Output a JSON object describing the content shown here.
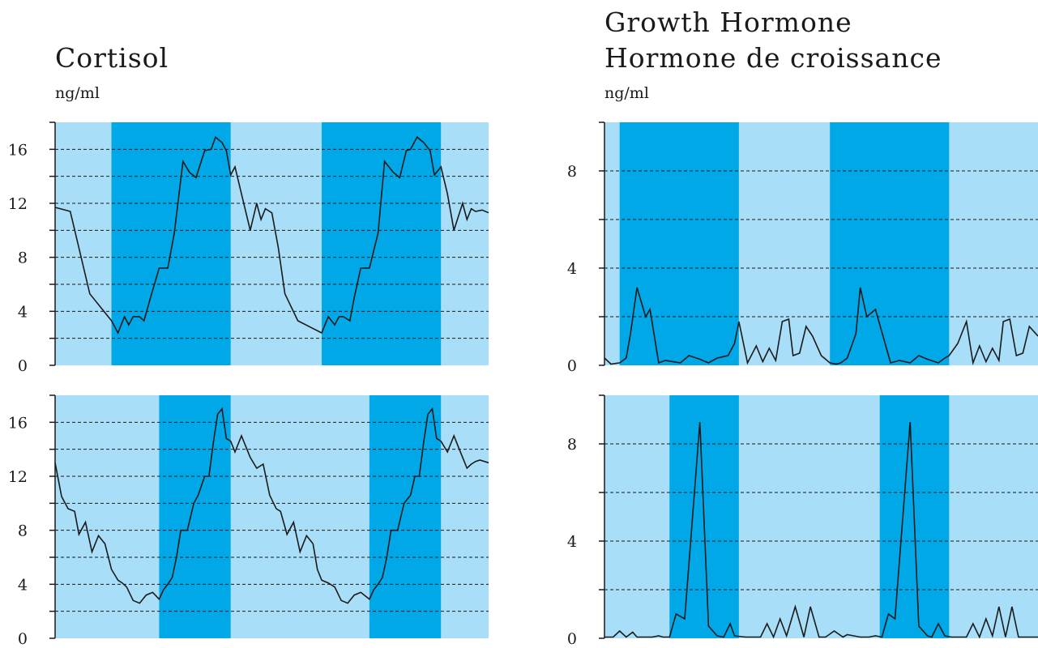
{
  "left_title": "Cortisol",
  "left_unit": "ng/ml",
  "right_title_line1": "Growth Hormone",
  "right_title_line2": "Hormone de croissance",
  "right_unit": "ng/ml",
  "colors": {
    "light_band": "#a8def8",
    "dark_band": "#00a8e8",
    "line": "#1a1a1a"
  },
  "chart_data": [
    {
      "type": "line",
      "name": "cortisol-top",
      "ylim": [
        0,
        18
      ],
      "yticks": [
        0,
        4,
        8,
        12,
        16
      ],
      "grid": "dashed every 2",
      "xlim": [
        0,
        100
      ],
      "dark_bands": [
        [
          13,
          40.5
        ],
        [
          61.5,
          89
        ]
      ],
      "x": [
        0,
        3.5,
        8,
        13,
        14.5,
        16,
        17,
        18,
        19.5,
        20.5,
        22,
        24,
        26,
        27.5,
        29.5,
        31,
        32.5,
        34.5,
        36,
        37,
        38.5,
        39.5,
        40.5,
        41.5,
        43,
        45,
        46.5,
        47.5,
        48.5,
        50,
        51.5,
        53,
        56,
        61.5,
        63,
        64.5,
        65.5,
        66.5,
        68,
        69,
        70.5,
        72.5,
        74.5,
        76,
        78,
        79.5,
        81,
        82,
        83.5,
        85,
        86.5,
        87.5,
        89,
        90.5,
        92,
        94,
        95,
        96,
        97,
        98.5,
        100
      ],
      "y": [
        11.7,
        11.4,
        5.3,
        3.3,
        2.4,
        3.6,
        3.0,
        3.6,
        3.6,
        3.3,
        5.0,
        7.2,
        7.2,
        9.8,
        15.1,
        14.3,
        13.9,
        15.9,
        16.0,
        16.9,
        16.5,
        15.9,
        14.1,
        14.7,
        12.7,
        10.0,
        12.0,
        10.8,
        11.6,
        11.3,
        8.7,
        5.3,
        3.3,
        2.4,
        3.6,
        3.0,
        3.6,
        3.6,
        3.3,
        5.0,
        7.2,
        7.2,
        9.8,
        15.1,
        14.3,
        13.9,
        15.9,
        16.0,
        16.9,
        16.5,
        15.9,
        14.1,
        14.7,
        12.7,
        10.0,
        12.0,
        10.8,
        11.6,
        11.4,
        11.5,
        11.3
      ]
    },
    {
      "type": "line",
      "name": "cortisol-bottom",
      "ylim": [
        0,
        18
      ],
      "yticks": [
        0,
        4,
        8,
        12,
        16
      ],
      "grid": "dashed every 2",
      "xlim": [
        0,
        100
      ],
      "dark_bands": [
        [
          24,
          40.5
        ],
        [
          72.5,
          89
        ]
      ],
      "x": [
        0,
        1.5,
        3,
        4.5,
        5.5,
        7,
        8.5,
        10,
        11.5,
        13,
        14.5,
        15.5,
        16.5,
        18,
        19.5,
        21,
        22.5,
        24,
        25,
        26,
        27,
        28,
        29,
        30.5,
        32,
        33,
        34.5,
        35.5,
        36.5,
        37.5,
        38.5,
        39.5,
        40.5,
        41.5,
        43,
        44,
        45,
        46.5,
        48,
        49.5,
        51,
        52,
        53.5,
        55,
        56.5,
        58,
        59.5,
        60.5,
        61.5,
        63,
        64.5,
        66,
        67.5,
        69,
        70.5,
        72.5,
        73.5,
        74.5,
        75.5,
        76.5,
        77.5,
        79,
        80.5,
        82,
        83,
        84,
        85,
        86,
        87,
        88,
        89,
        90.5,
        92,
        93,
        94,
        95,
        96,
        97,
        98,
        100
      ],
      "y": [
        13.0,
        10.5,
        9.6,
        9.4,
        7.7,
        8.6,
        6.4,
        7.6,
        7.0,
        5.1,
        4.3,
        4.1,
        3.8,
        2.8,
        2.6,
        3.2,
        3.4,
        2.9,
        3.6,
        4.0,
        4.5,
        6.0,
        8.0,
        8.0,
        10.0,
        10.6,
        12.0,
        12.0,
        14.5,
        16.6,
        17.0,
        14.8,
        14.6,
        13.8,
        15.0,
        14.2,
        13.4,
        12.6,
        12.9,
        10.6,
        9.6,
        9.4,
        7.7,
        8.6,
        6.4,
        7.6,
        7.0,
        5.1,
        4.3,
        4.1,
        3.8,
        2.8,
        2.6,
        3.2,
        3.4,
        2.9,
        3.6,
        4.0,
        4.5,
        6.0,
        8.0,
        8.0,
        10.0,
        10.6,
        12.0,
        12.0,
        14.5,
        16.6,
        17.0,
        14.8,
        14.6,
        13.8,
        15.0,
        14.2,
        13.4,
        12.6,
        12.9,
        13.1,
        13.2,
        13.0
      ]
    },
    {
      "type": "line",
      "name": "growth-hormone-top",
      "ylim": [
        0,
        10
      ],
      "yticks": [
        0,
        4,
        8
      ],
      "grid": "dashed every 2",
      "xlim": [
        0,
        100
      ],
      "dark_bands": [
        [
          3.5,
          31
        ],
        [
          52,
          79.5
        ]
      ],
      "x": [
        0,
        1.5,
        3.5,
        5,
        6,
        7.5,
        9.5,
        10.5,
        12.5,
        14,
        17.5,
        19.5,
        22,
        24,
        26,
        28.5,
        30,
        31,
        33,
        35,
        36.5,
        38,
        39.5,
        41,
        42.5,
        43.5,
        45,
        46.5,
        48,
        50,
        52,
        53.5,
        54.5,
        56,
        58,
        59,
        60.5,
        62.5,
        66,
        68,
        70.5,
        72.5,
        74.5,
        77,
        78.5,
        79.5,
        81.5,
        83.5,
        85,
        86.5,
        88,
        89.5,
        91,
        92,
        93.5,
        95,
        96.5,
        98,
        100
      ],
      "y": [
        0.3,
        0.05,
        0.1,
        0.3,
        1.3,
        3.2,
        2.0,
        2.3,
        0.1,
        0.2,
        0.1,
        0.4,
        0.25,
        0.1,
        0.3,
        0.4,
        0.9,
        1.8,
        0.1,
        0.8,
        0.15,
        0.7,
        0.2,
        1.8,
        1.9,
        0.4,
        0.5,
        1.6,
        1.2,
        0.4,
        0.1,
        0.05,
        0.1,
        0.3,
        1.3,
        3.2,
        2.0,
        2.3,
        0.1,
        0.2,
        0.1,
        0.4,
        0.25,
        0.1,
        0.3,
        0.4,
        0.9,
        1.8,
        0.1,
        0.8,
        0.15,
        0.7,
        0.2,
        1.8,
        1.9,
        0.4,
        0.5,
        1.6,
        1.2
      ]
    },
    {
      "type": "line",
      "name": "growth-hormone-bottom",
      "ylim": [
        0,
        10
      ],
      "yticks": [
        0,
        4,
        8
      ],
      "grid": "dashed every 2",
      "xlim": [
        0,
        100
      ],
      "dark_bands": [
        [
          15,
          31
        ],
        [
          63.5,
          79.5
        ]
      ],
      "x": [
        0,
        2,
        3.5,
        5,
        6.5,
        7.5,
        9,
        11,
        12.5,
        13.5,
        15,
        16.5,
        18.5,
        22,
        24,
        26,
        27.5,
        29,
        30,
        32.5,
        34.5,
        36,
        37.5,
        39,
        40.5,
        42,
        44,
        46,
        47.5,
        49.5,
        51,
        53,
        55,
        56,
        57.5,
        59,
        61,
        62.5,
        64,
        65.5,
        67,
        70.5,
        72.5,
        74.5,
        75.5,
        77,
        78.5,
        80,
        82,
        83.5,
        85,
        86.5,
        88,
        89.5,
        91,
        92.5,
        94,
        95.5,
        97,
        98.5,
        100
      ],
      "y": [
        0.05,
        0.05,
        0.3,
        0.05,
        0.25,
        0.05,
        0.05,
        0.05,
        0.1,
        0.05,
        0.05,
        1.0,
        0.8,
        8.9,
        0.5,
        0.1,
        0.05,
        0.6,
        0.1,
        0.05,
        0.05,
        0.05,
        0.6,
        0.05,
        0.8,
        0.1,
        1.3,
        0.05,
        1.3,
        0.05,
        0.05,
        0.3,
        0.05,
        0.15,
        0.1,
        0.05,
        0.05,
        0.1,
        0.05,
        1.0,
        0.8,
        8.9,
        0.5,
        0.1,
        0.05,
        0.6,
        0.1,
        0.05,
        0.05,
        0.05,
        0.6,
        0.05,
        0.8,
        0.1,
        1.3,
        0.05,
        1.3,
        0.05,
        0.05,
        0.05,
        0.05
      ]
    }
  ]
}
